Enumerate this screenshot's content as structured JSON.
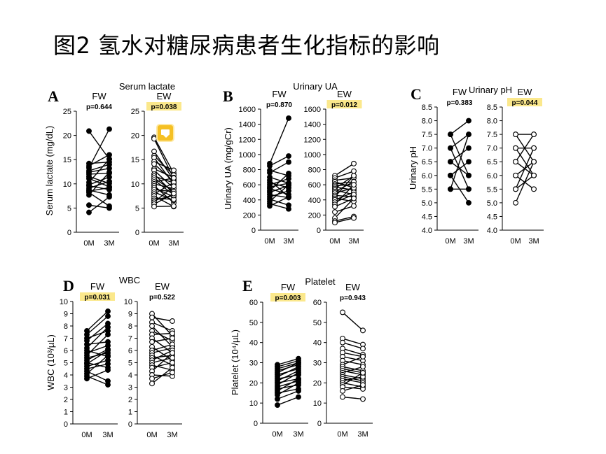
{
  "slide_title": "图2 氢水对糖尿病患者生化指标的影响",
  "colors": {
    "highlight": "#fbe88c",
    "note_icon": "#f5c024",
    "line": "#000000"
  },
  "note_icon": "comment-note-icon",
  "chart_data": [
    {
      "type": "line",
      "panel_letter": "A",
      "title": "Serum lactate",
      "ylabel": "Serum lactate (mg/dL)",
      "categories": [
        "0M",
        "3M"
      ],
      "ylim": [
        0,
        25
      ],
      "yticks": [
        0,
        5,
        10,
        15,
        20,
        25
      ],
      "groups": [
        {
          "label": "FW",
          "p": "p=0.644",
          "p_highlight": false,
          "filled": true,
          "pairs": [
            [
              20.9,
              15.1
            ],
            [
              14.2,
              14.5
            ],
            [
              13.7,
              16.0
            ],
            [
              13.3,
              21.3
            ],
            [
              12.7,
              14.0
            ],
            [
              12.4,
              13.2
            ],
            [
              12.0,
              12.2
            ],
            [
              11.5,
              10.1
            ],
            [
              11.1,
              9.4
            ],
            [
              10.3,
              15.1
            ],
            [
              9.8,
              11.4
            ],
            [
              9.6,
              8.8
            ],
            [
              9.1,
              10.5
            ],
            [
              8.7,
              7.7
            ],
            [
              8.5,
              9.2
            ],
            [
              8.2,
              5.4
            ],
            [
              7.7,
              12.4
            ],
            [
              5.6,
              5.0
            ],
            [
              4.1,
              7.3
            ]
          ]
        },
        {
          "label": "EW",
          "p": "p=0.038",
          "p_highlight": true,
          "filled": false,
          "pairs": [
            [
              19.6,
              12.2
            ],
            [
              19.3,
              11.1
            ],
            [
              16.7,
              10.8
            ],
            [
              15.8,
              11.8
            ],
            [
              15.4,
              9.9
            ],
            [
              14.6,
              12.8
            ],
            [
              14.1,
              10.5
            ],
            [
              13.1,
              11.3
            ],
            [
              12.8,
              9.1
            ],
            [
              12.0,
              8.0
            ],
            [
              11.6,
              10.2
            ],
            [
              11.2,
              8.4
            ],
            [
              10.8,
              7.7
            ],
            [
              10.4,
              11.2
            ],
            [
              10.0,
              9.0
            ],
            [
              9.6,
              6.1
            ],
            [
              9.2,
              7.3
            ],
            [
              8.8,
              8.4
            ],
            [
              8.3,
              6.6
            ],
            [
              7.9,
              10.3
            ],
            [
              7.5,
              5.3
            ],
            [
              7.0,
              6.8
            ],
            [
              6.6,
              7.6
            ],
            [
              6.2,
              9.5
            ],
            [
              5.8,
              8.0
            ],
            [
              5.3,
              5.4
            ]
          ]
        }
      ]
    },
    {
      "type": "line",
      "panel_letter": "B",
      "title": "Urinary UA",
      "ylabel": "Urinary UA (mg/gCr)",
      "categories": [
        "0M",
        "3M"
      ],
      "ylim": [
        0,
        1600
      ],
      "yticks": [
        0,
        200,
        400,
        600,
        800,
        1000,
        1200,
        1400,
        1600
      ],
      "groups": [
        {
          "label": "FW",
          "p": "p=0.870",
          "p_highlight": false,
          "filled": true,
          "pairs": [
            [
              880,
              1480
            ],
            [
              850,
              980
            ],
            [
              790,
              720
            ],
            [
              760,
              900
            ],
            [
              700,
              620
            ],
            [
              660,
              440
            ],
            [
              630,
              560
            ],
            [
              600,
              680
            ],
            [
              570,
              620
            ],
            [
              550,
              470
            ],
            [
              520,
              750
            ],
            [
              500,
              590
            ],
            [
              470,
              430
            ],
            [
              440,
              520
            ],
            [
              410,
              330
            ],
            [
              380,
              600
            ],
            [
              350,
              280
            ],
            [
              320,
              440
            ]
          ]
        },
        {
          "label": "EW",
          "p": "p=0.012",
          "p_highlight": true,
          "filled": false,
          "pairs": [
            [
              720,
              880
            ],
            [
              690,
              780
            ],
            [
              660,
              690
            ],
            [
              640,
              560
            ],
            [
              610,
              640
            ],
            [
              590,
              600
            ],
            [
              570,
              530
            ],
            [
              550,
              720
            ],
            [
              530,
              470
            ],
            [
              510,
              640
            ],
            [
              490,
              560
            ],
            [
              460,
              440
            ],
            [
              440,
              720
            ],
            [
              420,
              380
            ],
            [
              400,
              500
            ],
            [
              370,
              470
            ],
            [
              340,
              600
            ],
            [
              310,
              420
            ],
            [
              240,
              320
            ],
            [
              160,
              420
            ],
            [
              120,
              180
            ],
            [
              100,
              160
            ]
          ]
        }
      ]
    },
    {
      "type": "line",
      "panel_letter": "C",
      "title": "Urinary pH",
      "ylabel": "Urinary pH",
      "categories": [
        "0M",
        "3M"
      ],
      "ylim": [
        4.0,
        8.5
      ],
      "yticks": [
        4.0,
        4.5,
        5.0,
        5.5,
        6.0,
        6.5,
        7.0,
        7.5,
        8.0,
        8.5
      ],
      "groups": [
        {
          "label": "FW",
          "p": "p=0.383",
          "p_highlight": false,
          "filled": true,
          "pairs": [
            [
              7.5,
              8.0
            ],
            [
              7.5,
              6.0
            ],
            [
              7.0,
              7.5
            ],
            [
              7.0,
              5.5
            ],
            [
              6.5,
              7.0
            ],
            [
              6.5,
              6.0
            ],
            [
              6.0,
              6.5
            ],
            [
              6.0,
              5.0
            ],
            [
              5.5,
              7.5
            ],
            [
              5.5,
              5.5
            ]
          ]
        },
        {
          "label": "EW",
          "p": "p=0.044",
          "p_highlight": true,
          "filled": false,
          "pairs": [
            [
              7.5,
              7.5
            ],
            [
              7.5,
              6.5
            ],
            [
              7.0,
              7.0
            ],
            [
              7.0,
              6.0
            ],
            [
              6.5,
              7.5
            ],
            [
              6.5,
              6.0
            ],
            [
              6.0,
              6.5
            ],
            [
              6.0,
              5.5
            ],
            [
              5.5,
              6.0
            ],
            [
              5.5,
              7.0
            ],
            [
              5.0,
              6.5
            ]
          ]
        }
      ]
    },
    {
      "type": "line",
      "panel_letter": "D",
      "title": "WBC",
      "ylabel": "WBC (10³/µL)",
      "categories": [
        "0M",
        "3M"
      ],
      "ylim": [
        0,
        10
      ],
      "yticks": [
        0,
        1,
        2,
        3,
        4,
        5,
        6,
        7,
        8,
        9,
        10
      ],
      "groups": [
        {
          "label": "FW",
          "p": "p=0.031",
          "p_highlight": true,
          "filled": true,
          "pairs": [
            [
              7.6,
              9.2
            ],
            [
              7.3,
              8.8
            ],
            [
              7.0,
              7.6
            ],
            [
              6.8,
              8.2
            ],
            [
              6.5,
              6.7
            ],
            [
              6.2,
              7.9
            ],
            [
              6.0,
              5.5
            ],
            [
              5.8,
              6.4
            ],
            [
              5.6,
              7.3
            ],
            [
              5.4,
              5.8
            ],
            [
              5.2,
              6.1
            ],
            [
              5.0,
              4.6
            ],
            [
              4.9,
              6.0
            ],
            [
              4.7,
              5.2
            ],
            [
              4.5,
              4.9
            ],
            [
              4.3,
              3.5
            ],
            [
              4.1,
              5.6
            ],
            [
              3.9,
              3.2
            ],
            [
              3.7,
              4.4
            ]
          ]
        },
        {
          "label": "EW",
          "p": "p=0.522",
          "p_highlight": false,
          "filled": false,
          "pairs": [
            [
              9.0,
              7.2
            ],
            [
              8.7,
              8.4
            ],
            [
              8.3,
              7.6
            ],
            [
              8.0,
              6.3
            ],
            [
              7.6,
              6.8
            ],
            [
              7.3,
              7.4
            ],
            [
              7.0,
              5.8
            ],
            [
              6.7,
              7.0
            ],
            [
              6.3,
              5.2
            ],
            [
              6.0,
              6.5
            ],
            [
              5.8,
              6.2
            ],
            [
              5.6,
              4.8
            ],
            [
              5.4,
              5.6
            ],
            [
              5.2,
              6.0
            ],
            [
              5.0,
              5.4
            ],
            [
              4.8,
              4.4
            ],
            [
              4.6,
              5.0
            ],
            [
              4.3,
              5.8
            ],
            [
              4.0,
              3.9
            ],
            [
              3.7,
              4.2
            ],
            [
              3.3,
              4.6
            ]
          ]
        }
      ]
    },
    {
      "type": "line",
      "panel_letter": "E",
      "title": "Platelet",
      "ylabel": "Platelet (10⁴/µL)",
      "categories": [
        "0M",
        "3M"
      ],
      "ylim": [
        0,
        60
      ],
      "yticks": [
        0,
        10,
        20,
        30,
        40,
        50,
        60
      ],
      "groups": [
        {
          "label": "FW",
          "p": "p=0.003",
          "p_highlight": true,
          "filled": true,
          "pairs": [
            [
              29,
              32
            ],
            [
              28,
              31
            ],
            [
              27,
              30
            ],
            [
              26,
              29
            ],
            [
              25,
              30
            ],
            [
              24,
              27
            ],
            [
              23,
              28
            ],
            [
              22,
              24
            ],
            [
              21,
              26
            ],
            [
              20,
              22
            ],
            [
              19,
              25
            ],
            [
              18,
              21
            ],
            [
              17,
              19
            ],
            [
              16,
              22
            ],
            [
              15,
              17
            ],
            [
              14,
              20
            ],
            [
              12,
              16
            ],
            [
              9,
              13
            ]
          ]
        },
        {
          "label": "EW",
          "p": "p=0.943",
          "p_highlight": false,
          "filled": false,
          "pairs": [
            [
              55,
              46
            ],
            [
              42,
              39
            ],
            [
              40,
              37
            ],
            [
              37,
              34
            ],
            [
              35,
              33
            ],
            [
              33,
              31
            ],
            [
              31,
              29
            ],
            [
              29,
              33
            ],
            [
              28,
              26
            ],
            [
              27,
              25
            ],
            [
              26,
              24
            ],
            [
              25,
              28
            ],
            [
              24,
              22
            ],
            [
              23,
              21
            ],
            [
              22,
              20
            ],
            [
              21,
              23
            ],
            [
              20,
              18
            ],
            [
              19,
              25
            ],
            [
              18,
              17
            ],
            [
              16,
              19
            ],
            [
              13,
              12
            ]
          ]
        }
      ]
    }
  ]
}
